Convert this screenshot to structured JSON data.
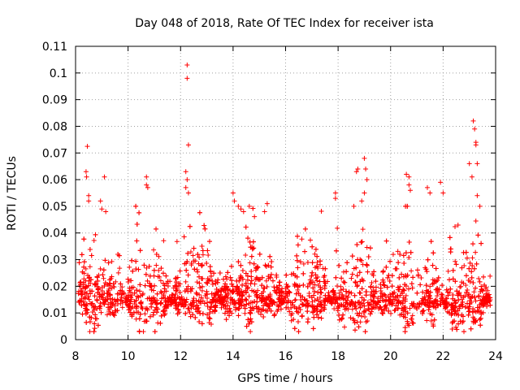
{
  "chart_data": {
    "type": "scatter",
    "title": "Day 048 of 2018, Rate Of TEC Index for receiver ista",
    "xlabel": "GPS time / hours",
    "ylabel": "ROTI / TECUs",
    "xlim": [
      8,
      24
    ],
    "ylim": [
      0,
      0.11
    ],
    "xticks": [
      8,
      10,
      12,
      14,
      16,
      18,
      20,
      22,
      24
    ],
    "xtick_labels": [
      "8",
      "10",
      "12",
      "14",
      "16",
      "18",
      "20",
      "22",
      "24"
    ],
    "yticks": [
      0,
      0.01,
      0.02,
      0.03,
      0.04,
      0.05,
      0.06,
      0.07,
      0.08,
      0.09,
      0.1,
      0.11
    ],
    "ytick_labels": [
      "0",
      "0.01",
      "0.02",
      "0.03",
      "0.04",
      "0.05",
      "0.06",
      "0.07",
      "0.08",
      "0.09",
      "0.1",
      "0.11"
    ],
    "grid": true,
    "marker": "+",
    "color": "#ff0000",
    "x_data_range": [
      8.1,
      23.8
    ],
    "series": [
      {
        "name": "ROTI",
        "points": [
          [
            8.45,
            0.0725
          ],
          [
            8.4,
            0.063
          ],
          [
            8.42,
            0.061
          ],
          [
            8.5,
            0.054
          ],
          [
            8.5,
            0.052
          ],
          [
            9.1,
            0.061
          ],
          [
            8.95,
            0.052
          ],
          [
            9.0,
            0.049
          ],
          [
            9.15,
            0.048
          ],
          [
            10.7,
            0.061
          ],
          [
            10.7,
            0.058
          ],
          [
            10.75,
            0.057
          ],
          [
            12.25,
            0.103
          ],
          [
            12.25,
            0.098
          ],
          [
            12.3,
            0.073
          ],
          [
            12.2,
            0.063
          ],
          [
            12.25,
            0.06
          ],
          [
            12.3,
            0.055
          ],
          [
            12.2,
            0.057
          ],
          [
            14.0,
            0.055
          ],
          [
            14.05,
            0.052
          ],
          [
            14.2,
            0.05
          ],
          [
            14.3,
            0.049
          ],
          [
            14.4,
            0.048
          ],
          [
            15.3,
            0.051
          ],
          [
            15.2,
            0.048
          ],
          [
            17.9,
            0.055
          ],
          [
            17.9,
            0.053
          ],
          [
            18.7,
            0.063
          ],
          [
            18.75,
            0.064
          ],
          [
            19.0,
            0.068
          ],
          [
            19.05,
            0.064
          ],
          [
            19.1,
            0.06
          ],
          [
            19.0,
            0.055
          ],
          [
            18.9,
            0.052
          ],
          [
            18.6,
            0.05
          ],
          [
            20.6,
            0.062
          ],
          [
            20.7,
            0.061
          ],
          [
            20.7,
            0.058
          ],
          [
            20.75,
            0.056
          ],
          [
            21.4,
            0.057
          ],
          [
            21.5,
            0.055
          ],
          [
            21.9,
            0.059
          ],
          [
            22.0,
            0.055
          ],
          [
            23.15,
            0.082
          ],
          [
            23.2,
            0.079
          ],
          [
            23.25,
            0.074
          ],
          [
            23.25,
            0.073
          ],
          [
            23.3,
            0.066
          ],
          [
            23.1,
            0.061
          ],
          [
            23.0,
            0.066
          ],
          [
            23.3,
            0.054
          ],
          [
            23.4,
            0.05
          ]
        ],
        "bulk_description": {
          "min": 0.003,
          "typical_range": [
            0.007,
            0.03
          ],
          "median": 0.015
        }
      }
    ]
  }
}
